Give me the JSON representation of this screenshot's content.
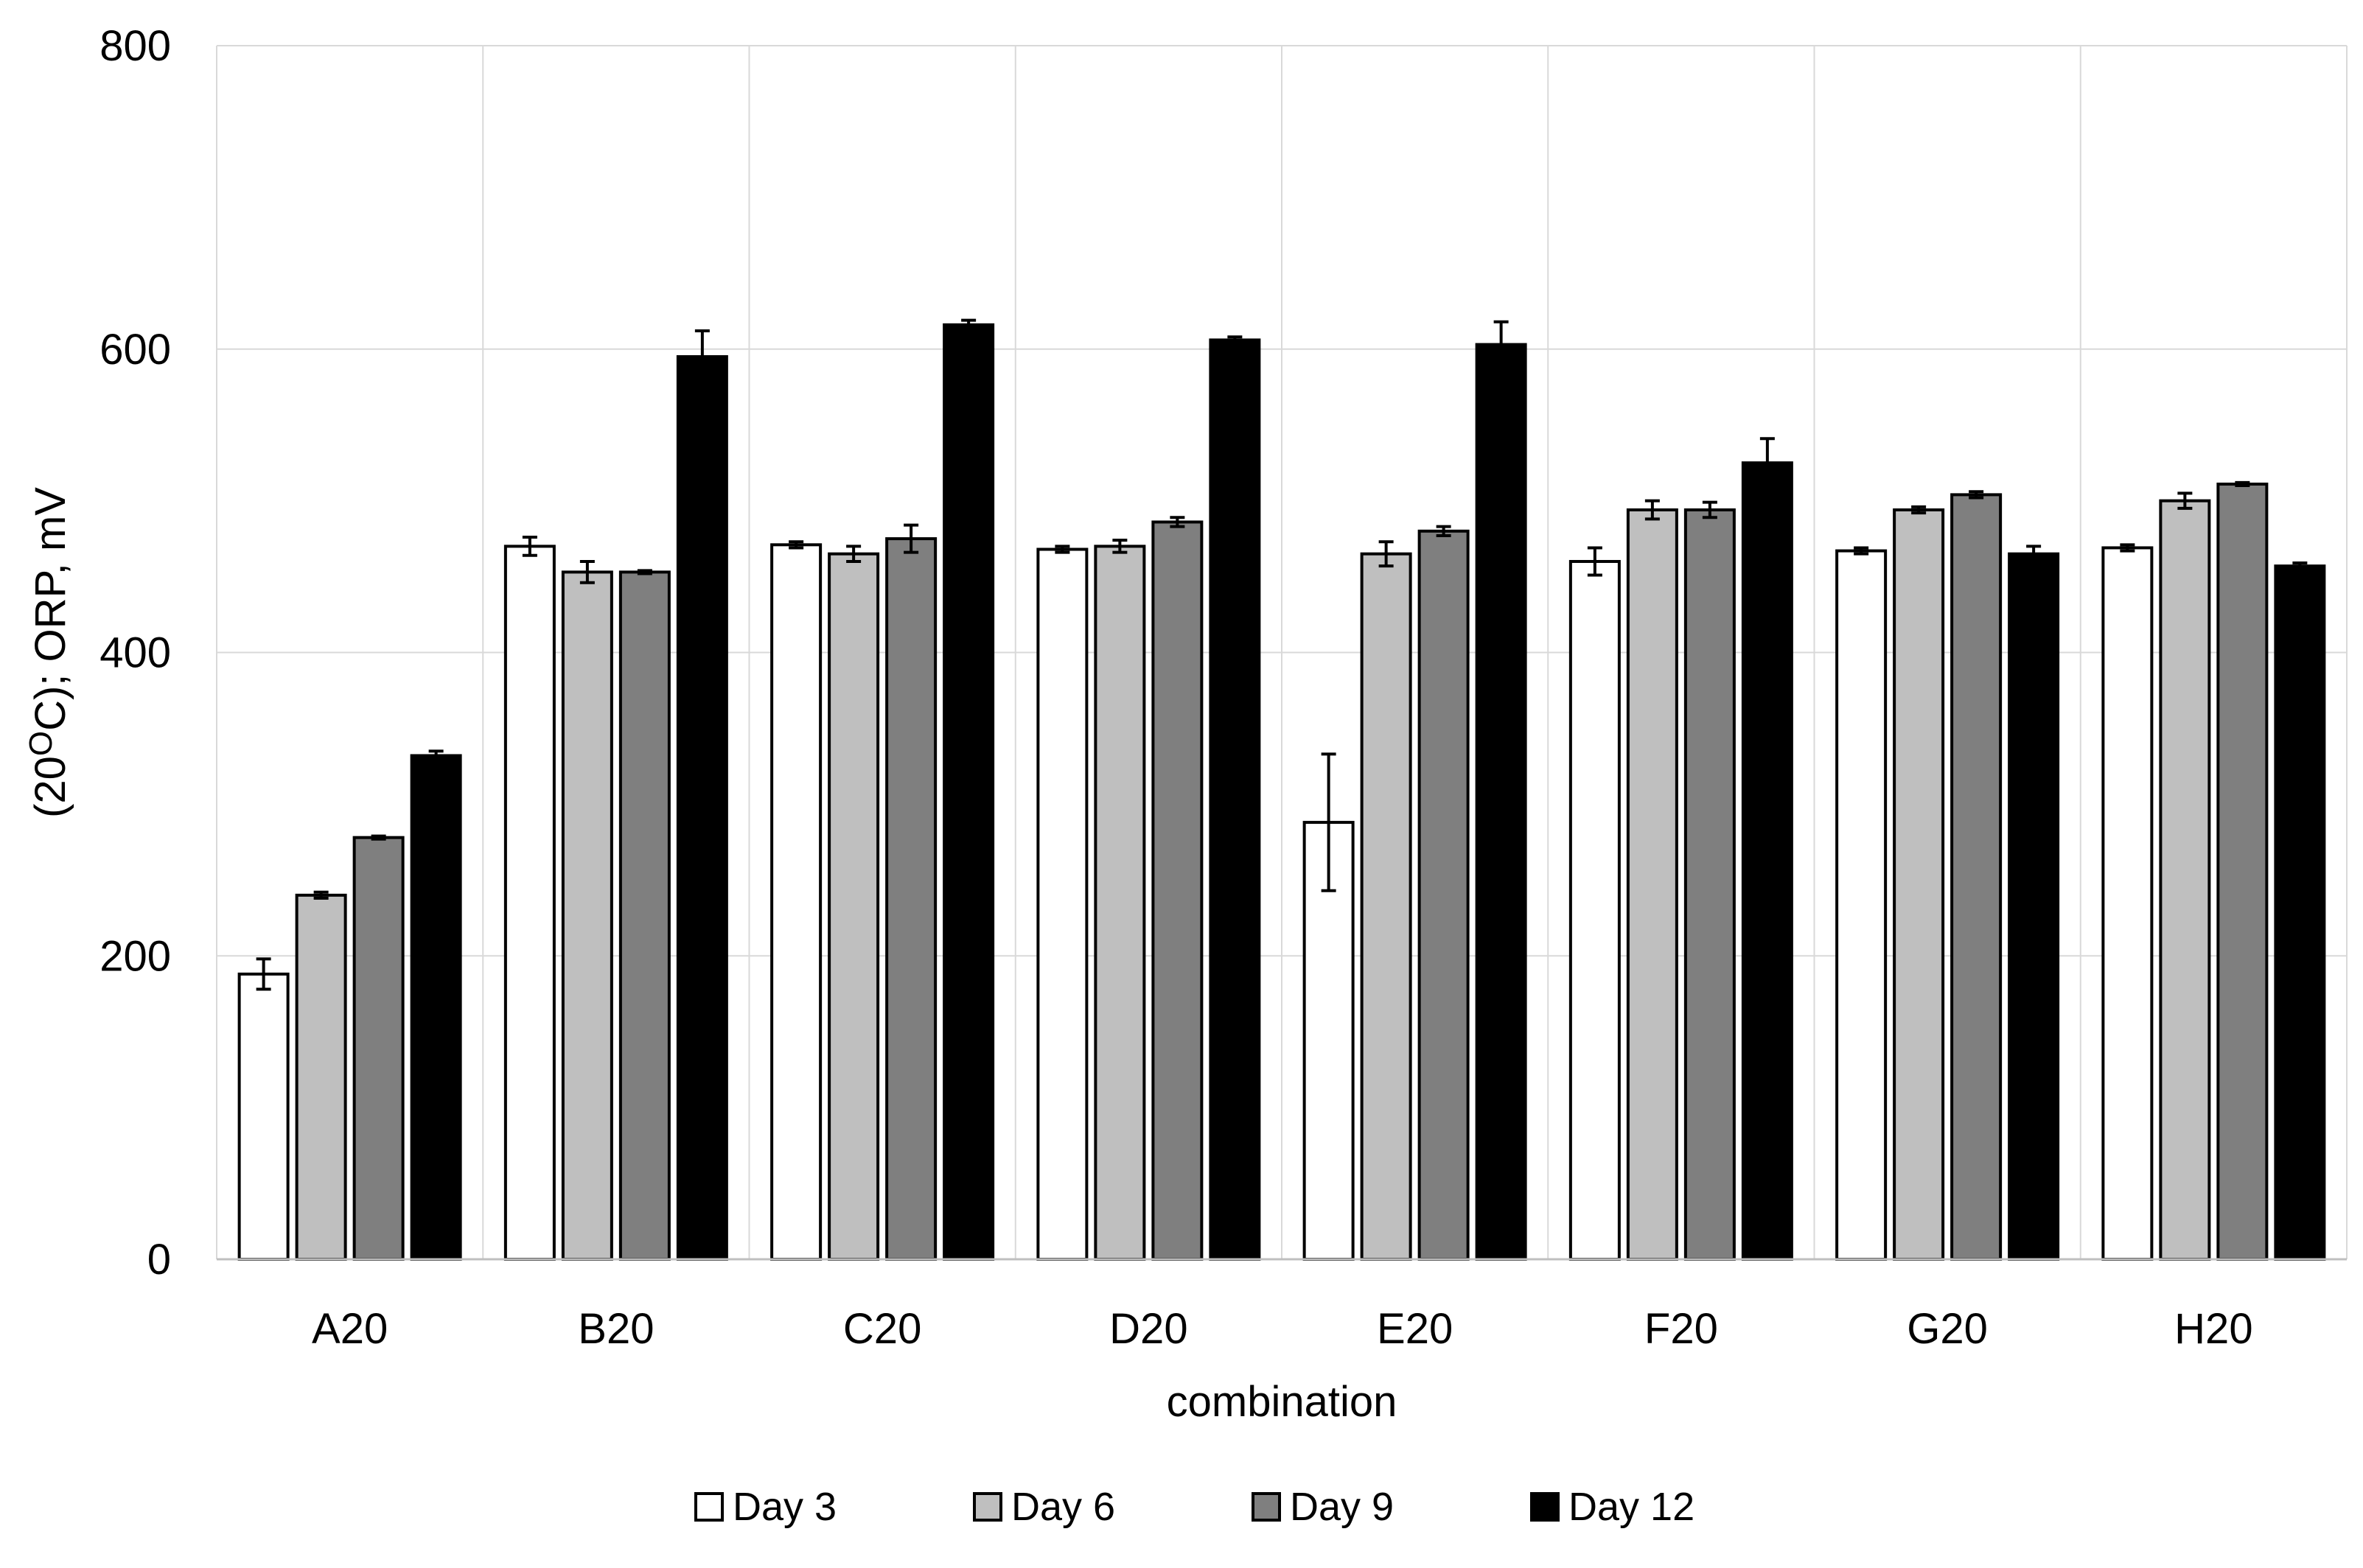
{
  "chart_data": {
    "type": "bar",
    "title": "",
    "xlabel": "combination",
    "ylabel_prefix": "(20",
    "ylabel_degree": "O",
    "ylabel_suffix": "C); ORP, mV",
    "ylim": [
      0,
      800
    ],
    "yticks": [
      0,
      200,
      400,
      600,
      800
    ],
    "grid": true,
    "legend_position": "bottom-center",
    "categories": [
      "A20",
      "B20",
      "C20",
      "D20",
      "E20",
      "F20",
      "G20",
      "H20"
    ],
    "series": [
      {
        "name": "Day 3",
        "color": "#ffffff",
        "values": [
          188,
          470,
          471,
          468,
          288,
          460,
          467,
          469
        ],
        "errors": [
          10,
          6,
          2,
          2,
          45,
          9,
          2,
          2
        ]
      },
      {
        "name": "Day 6",
        "color": "#bfbfbf",
        "values": [
          240,
          453,
          465,
          470,
          465,
          494,
          494,
          500
        ],
        "errors": [
          2,
          7,
          5,
          4,
          8,
          6,
          2,
          5
        ]
      },
      {
        "name": "Day 9",
        "color": "#7f7f7f",
        "values": [
          278,
          453,
          475,
          486,
          480,
          494,
          504,
          511
        ],
        "errors": [
          1,
          1,
          9,
          3,
          3,
          5,
          2,
          1
        ]
      },
      {
        "name": "Day 12",
        "color": "#000000",
        "values": [
          332,
          595,
          616,
          606,
          603,
          525,
          465,
          457
        ],
        "errors": [
          3,
          17,
          3,
          2,
          15,
          16,
          5,
          2
        ]
      }
    ]
  }
}
